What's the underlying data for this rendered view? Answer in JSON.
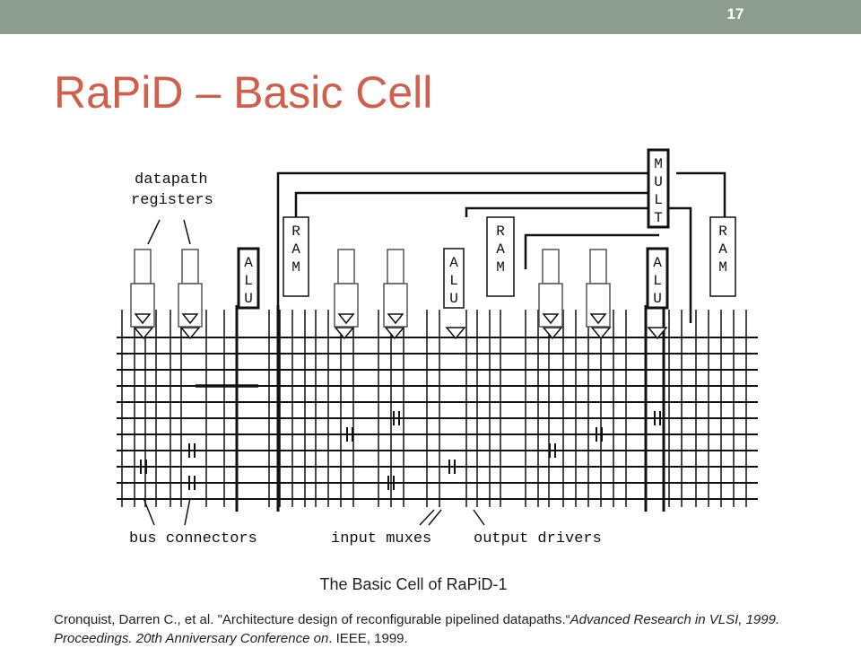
{
  "slide": {
    "number": "17",
    "title": "RaPiD – Basic Cell"
  },
  "diagram": {
    "labels": {
      "datapath_registers": [
        "datapath",
        "registers"
      ],
      "bus_connectors": "bus connectors",
      "input_muxes": "input muxes",
      "output_drivers": "output drivers"
    },
    "units": {
      "alu": [
        "A",
        "L",
        "U"
      ],
      "ram": [
        "R",
        "A",
        "M"
      ],
      "mult": [
        "M",
        "U",
        "L",
        "T"
      ]
    }
  },
  "caption": "The Basic Cell of RaPiD-1",
  "citation": {
    "prefix": "Cronquist, Darren C., et al. \"Architecture design of reconfigurable pipelined datapaths.“",
    "venue": "Advanced Research in VLSI, 1999. Proceedings. 20th Anniversary Conference on",
    "suffix": ". IEEE, 1999."
  },
  "colors": {
    "header_bar": "#8c9c8e",
    "title": "#d0604b",
    "ink": "#111111"
  }
}
